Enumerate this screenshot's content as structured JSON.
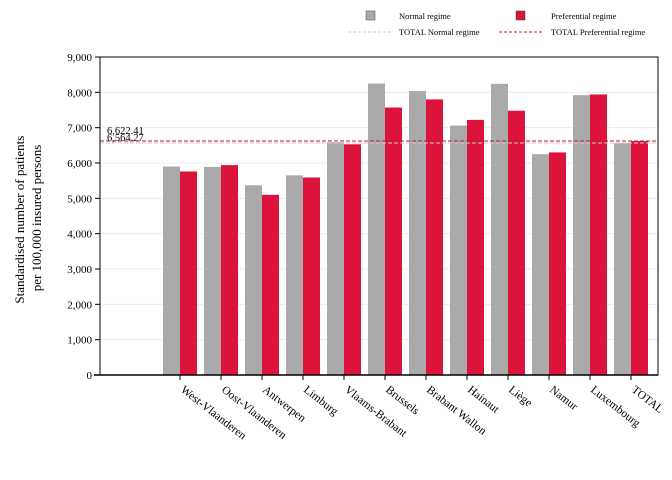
{
  "chart_data": {
    "type": "bar",
    "ylabel": [
      "Standardised number of patients",
      "per 100,000 insured persons"
    ],
    "ylim": [
      0,
      9000
    ],
    "yticks": [
      "0",
      "1,000",
      "2,000",
      "3,000",
      "4,000",
      "5,000",
      "6,000",
      "7,000",
      "8,000",
      "9,000"
    ],
    "grid": true,
    "legend_position": "top-right",
    "categories": [
      "West-Vlaanderen",
      "Oost-Vlaanderen",
      "Antwerpen",
      "Limburg",
      "Vlaams-Brabant",
      "Brussels",
      "Brabant Wallon",
      "Hainaut",
      "Liège",
      "Namur",
      "Luxembourg",
      "TOTAL"
    ],
    "series": [
      {
        "name": "Normal regime",
        "color": "#aaaaaa",
        "values": [
          5900,
          5890,
          5370,
          5650,
          6590,
          8250,
          8040,
          7060,
          8240,
          6250,
          7920,
          6560
        ]
      },
      {
        "name": "Preferential regime",
        "color": "#dc143c",
        "values": [
          5760,
          5940,
          5100,
          5590,
          6530,
          7570,
          7800,
          7220,
          7480,
          6300,
          7940,
          6620
        ]
      }
    ],
    "reference_lines": [
      {
        "name": "TOTAL Normal regime",
        "value": 6564.27,
        "label": "6,564.27",
        "color": "#cccccc"
      },
      {
        "name": "TOTAL Preferential regime",
        "value": 6622.41,
        "label": "6,622.41",
        "color": "#c0143c"
      }
    ]
  }
}
